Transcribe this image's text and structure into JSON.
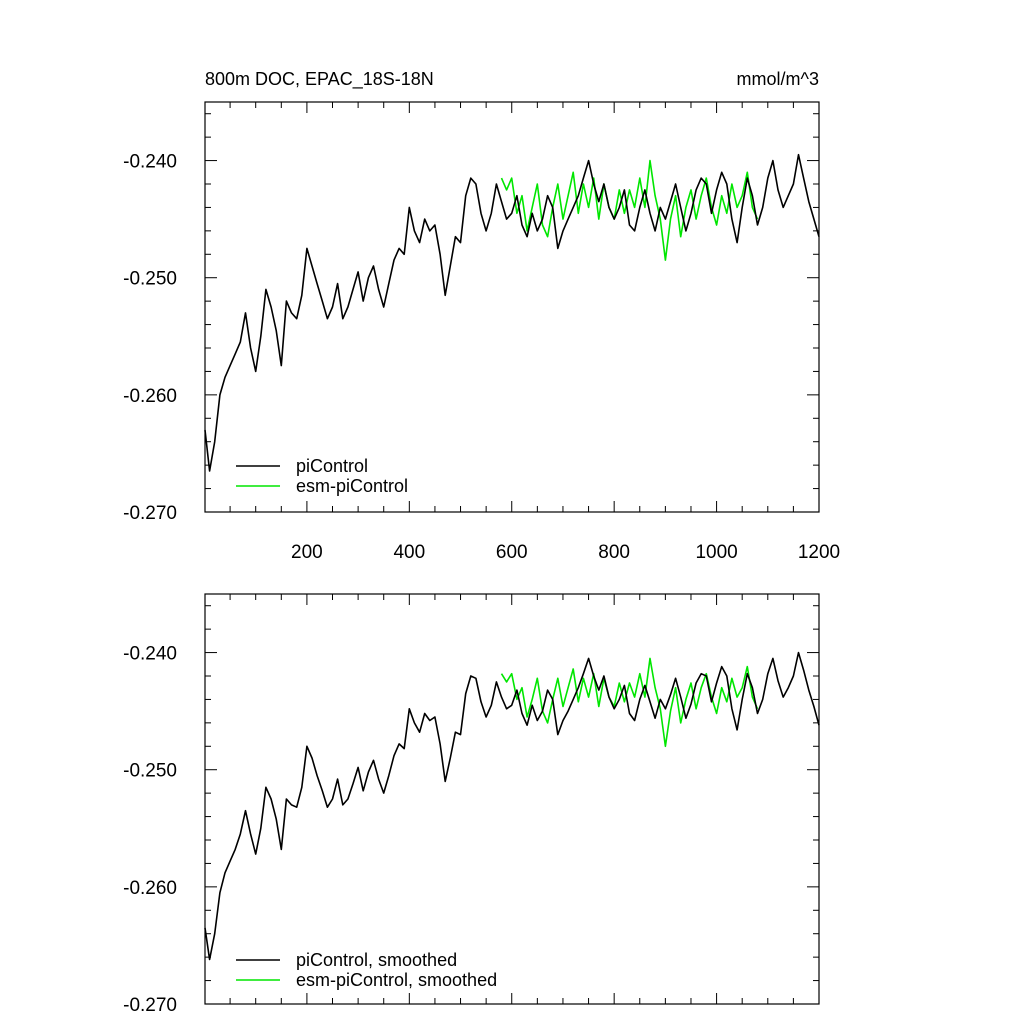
{
  "header": {
    "title": "800m DOC, EPAC_18S-18N",
    "units": "mmol/m^3"
  },
  "colors": {
    "picontrol": "#000000",
    "esm_picontrol": "#00e600"
  },
  "chart_data": [
    {
      "type": "line",
      "title": "800m DOC, EPAC_18S-18N",
      "units": "mmol/m^3",
      "xlim": [
        1,
        1200
      ],
      "ylim": [
        -0.27,
        -0.235
      ],
      "xticks": [
        200,
        400,
        600,
        800,
        1000,
        1200
      ],
      "xtick_labels": [
        "200",
        "400",
        "600",
        "800",
        "1000",
        "1200"
      ],
      "yticks": [
        -0.24,
        -0.25,
        -0.26,
        -0.27
      ],
      "ytick_labels": [
        "-0.240",
        "-0.250",
        "-0.260",
        "-0.270"
      ],
      "legend_placement": "bottom-left",
      "grid": false,
      "series": [
        {
          "name": "piControl",
          "color": "#000000",
          "x": [
            1,
            10,
            20,
            30,
            40,
            50,
            60,
            70,
            80,
            90,
            100,
            110,
            120,
            130,
            140,
            150,
            160,
            170,
            180,
            190,
            200,
            210,
            220,
            230,
            240,
            250,
            260,
            270,
            280,
            290,
            300,
            310,
            320,
            330,
            340,
            350,
            360,
            370,
            380,
            390,
            400,
            410,
            420,
            430,
            440,
            450,
            460,
            470,
            480,
            490,
            500,
            510,
            520,
            530,
            540,
            550,
            560,
            570,
            580,
            590,
            600,
            610,
            620,
            630,
            640,
            650,
            660,
            670,
            680,
            690,
            700,
            710,
            720,
            730,
            740,
            750,
            760,
            770,
            780,
            790,
            800,
            810,
            820,
            830,
            840,
            850,
            860,
            870,
            880,
            890,
            900,
            910,
            920,
            930,
            940,
            950,
            960,
            970,
            980,
            990,
            1000,
            1010,
            1020,
            1030,
            1040,
            1050,
            1060,
            1070,
            1080,
            1090,
            1100,
            1110,
            1120,
            1130,
            1140,
            1150,
            1160,
            1170,
            1180,
            1190,
            1200
          ],
          "values": [
            -0.263,
            -0.2665,
            -0.264,
            -0.26,
            -0.2585,
            -0.2575,
            -0.2565,
            -0.2555,
            -0.253,
            -0.256,
            -0.258,
            -0.255,
            -0.251,
            -0.2525,
            -0.2545,
            -0.2575,
            -0.252,
            -0.253,
            -0.2535,
            -0.2515,
            -0.2475,
            -0.249,
            -0.2505,
            -0.252,
            -0.2535,
            -0.2525,
            -0.2505,
            -0.2535,
            -0.2525,
            -0.251,
            -0.2495,
            -0.252,
            -0.25,
            -0.249,
            -0.251,
            -0.2525,
            -0.2505,
            -0.2485,
            -0.2475,
            -0.248,
            -0.244,
            -0.246,
            -0.247,
            -0.245,
            -0.246,
            -0.2455,
            -0.248,
            -0.2515,
            -0.249,
            -0.2465,
            -0.247,
            -0.243,
            -0.2415,
            -0.242,
            -0.2445,
            -0.246,
            -0.2445,
            -0.242,
            -0.2435,
            -0.245,
            -0.2445,
            -0.243,
            -0.2455,
            -0.2465,
            -0.2445,
            -0.246,
            -0.245,
            -0.243,
            -0.244,
            -0.2475,
            -0.246,
            -0.245,
            -0.244,
            -0.243,
            -0.2415,
            -0.24,
            -0.242,
            -0.2435,
            -0.242,
            -0.244,
            -0.245,
            -0.244,
            -0.2425,
            -0.2455,
            -0.246,
            -0.244,
            -0.2425,
            -0.2445,
            -0.246,
            -0.244,
            -0.245,
            -0.2435,
            -0.242,
            -0.244,
            -0.246,
            -0.2445,
            -0.2425,
            -0.2415,
            -0.242,
            -0.2445,
            -0.2425,
            -0.241,
            -0.242,
            -0.245,
            -0.247,
            -0.244,
            -0.2415,
            -0.243,
            -0.2455,
            -0.244,
            -0.2415,
            -0.24,
            -0.2425,
            -0.244,
            -0.243,
            -0.242,
            -0.2395,
            -0.2415,
            -0.2435,
            -0.245,
            -0.2465
          ]
        },
        {
          "name": "esm-piControl",
          "color": "#00e600",
          "x": [
            580,
            590,
            600,
            610,
            620,
            630,
            640,
            650,
            660,
            670,
            680,
            690,
            700,
            710,
            720,
            730,
            740,
            750,
            760,
            770,
            780,
            790,
            800,
            810,
            820,
            830,
            840,
            850,
            860,
            870,
            880,
            890,
            900,
            910,
            920,
            930,
            940,
            950,
            960,
            970,
            980,
            990,
            1000,
            1010,
            1020,
            1030,
            1040,
            1050,
            1060,
            1070,
            1080
          ],
          "values": [
            -0.2415,
            -0.2425,
            -0.2415,
            -0.2445,
            -0.243,
            -0.246,
            -0.244,
            -0.242,
            -0.2455,
            -0.2465,
            -0.244,
            -0.242,
            -0.245,
            -0.243,
            -0.241,
            -0.2445,
            -0.242,
            -0.244,
            -0.2415,
            -0.245,
            -0.242,
            -0.244,
            -0.245,
            -0.2425,
            -0.2445,
            -0.2425,
            -0.244,
            -0.2415,
            -0.244,
            -0.24,
            -0.243,
            -0.245,
            -0.2485,
            -0.245,
            -0.243,
            -0.2465,
            -0.244,
            -0.2425,
            -0.245,
            -0.243,
            -0.2415,
            -0.244,
            -0.2455,
            -0.243,
            -0.2445,
            -0.242,
            -0.244,
            -0.243,
            -0.241,
            -0.244,
            -0.245
          ]
        }
      ]
    },
    {
      "type": "line",
      "title": "",
      "xlim": [
        1,
        1200
      ],
      "ylim": [
        -0.27,
        -0.235
      ],
      "xticks": [
        200,
        400,
        600,
        800,
        1000,
        1200
      ],
      "xtick_labels": [],
      "yticks": [
        -0.24,
        -0.25,
        -0.26,
        -0.27
      ],
      "ytick_labels": [
        "-0.240",
        "-0.250",
        "-0.260",
        "-0.270"
      ],
      "legend_placement": "bottom-left",
      "grid": false,
      "series": [
        {
          "name": "piControl, smoothed",
          "color": "#000000",
          "x": [
            1,
            10,
            20,
            30,
            40,
            50,
            60,
            70,
            80,
            90,
            100,
            110,
            120,
            130,
            140,
            150,
            160,
            170,
            180,
            190,
            200,
            210,
            220,
            230,
            240,
            250,
            260,
            270,
            280,
            290,
            300,
            310,
            320,
            330,
            340,
            350,
            360,
            370,
            380,
            390,
            400,
            410,
            420,
            430,
            440,
            450,
            460,
            470,
            480,
            490,
            500,
            510,
            520,
            530,
            540,
            550,
            560,
            570,
            580,
            590,
            600,
            610,
            620,
            630,
            640,
            650,
            660,
            670,
            680,
            690,
            700,
            710,
            720,
            730,
            740,
            750,
            760,
            770,
            780,
            790,
            800,
            810,
            820,
            830,
            840,
            850,
            860,
            870,
            880,
            890,
            900,
            910,
            920,
            930,
            940,
            950,
            960,
            970,
            980,
            990,
            1000,
            1010,
            1020,
            1030,
            1040,
            1050,
            1060,
            1070,
            1080,
            1090,
            1100,
            1110,
            1120,
            1130,
            1140,
            1150,
            1160,
            1170,
            1180,
            1190,
            1200
          ],
          "values": [
            -0.2635,
            -0.2662,
            -0.264,
            -0.2605,
            -0.2588,
            -0.2578,
            -0.2568,
            -0.2555,
            -0.2535,
            -0.2555,
            -0.2572,
            -0.255,
            -0.2515,
            -0.2525,
            -0.2542,
            -0.2568,
            -0.2525,
            -0.253,
            -0.2532,
            -0.2515,
            -0.248,
            -0.249,
            -0.2505,
            -0.2518,
            -0.2532,
            -0.2525,
            -0.2508,
            -0.253,
            -0.2525,
            -0.2512,
            -0.2498,
            -0.2518,
            -0.2502,
            -0.2492,
            -0.2508,
            -0.252,
            -0.2505,
            -0.2488,
            -0.2478,
            -0.2482,
            -0.2448,
            -0.246,
            -0.2468,
            -0.2452,
            -0.2458,
            -0.2455,
            -0.2478,
            -0.251,
            -0.249,
            -0.2468,
            -0.247,
            -0.2435,
            -0.242,
            -0.2422,
            -0.2442,
            -0.2455,
            -0.2445,
            -0.2425,
            -0.2438,
            -0.2448,
            -0.2445,
            -0.2432,
            -0.2452,
            -0.2462,
            -0.2445,
            -0.2458,
            -0.245,
            -0.2432,
            -0.244,
            -0.247,
            -0.2458,
            -0.245,
            -0.244,
            -0.243,
            -0.2418,
            -0.2405,
            -0.242,
            -0.2432,
            -0.242,
            -0.2438,
            -0.2448,
            -0.244,
            -0.2428,
            -0.2452,
            -0.2458,
            -0.244,
            -0.2428,
            -0.2442,
            -0.2456,
            -0.244,
            -0.2448,
            -0.2436,
            -0.2422,
            -0.2438,
            -0.2456,
            -0.2444,
            -0.2426,
            -0.2418,
            -0.242,
            -0.2442,
            -0.2426,
            -0.2412,
            -0.242,
            -0.2448,
            -0.2466,
            -0.244,
            -0.2418,
            -0.243,
            -0.2452,
            -0.244,
            -0.2418,
            -0.2405,
            -0.2424,
            -0.2438,
            -0.243,
            -0.242,
            -0.24,
            -0.2415,
            -0.2432,
            -0.2446,
            -0.2462
          ]
        },
        {
          "name": "esm-piControl, smoothed",
          "color": "#00e600",
          "x": [
            580,
            590,
            600,
            610,
            620,
            630,
            640,
            650,
            660,
            670,
            680,
            690,
            700,
            710,
            720,
            730,
            740,
            750,
            760,
            770,
            780,
            790,
            800,
            810,
            820,
            830,
            840,
            850,
            860,
            870,
            880,
            890,
            900,
            910,
            920,
            930,
            940,
            950,
            960,
            970,
            980,
            990,
            1000,
            1010,
            1020,
            1030,
            1040,
            1050,
            1060,
            1070,
            1080
          ],
          "values": [
            -0.2418,
            -0.2425,
            -0.2418,
            -0.244,
            -0.243,
            -0.2455,
            -0.244,
            -0.2422,
            -0.245,
            -0.246,
            -0.244,
            -0.2422,
            -0.2446,
            -0.243,
            -0.2414,
            -0.2442,
            -0.2422,
            -0.2438,
            -0.2418,
            -0.2446,
            -0.2422,
            -0.2438,
            -0.2446,
            -0.2426,
            -0.2442,
            -0.2426,
            -0.2438,
            -0.2418,
            -0.2438,
            -0.2405,
            -0.243,
            -0.2448,
            -0.248,
            -0.245,
            -0.243,
            -0.246,
            -0.244,
            -0.2426,
            -0.2448,
            -0.243,
            -0.2418,
            -0.2438,
            -0.2452,
            -0.243,
            -0.2442,
            -0.2422,
            -0.2438,
            -0.243,
            -0.2412,
            -0.2438,
            -0.2448
          ]
        }
      ]
    }
  ]
}
